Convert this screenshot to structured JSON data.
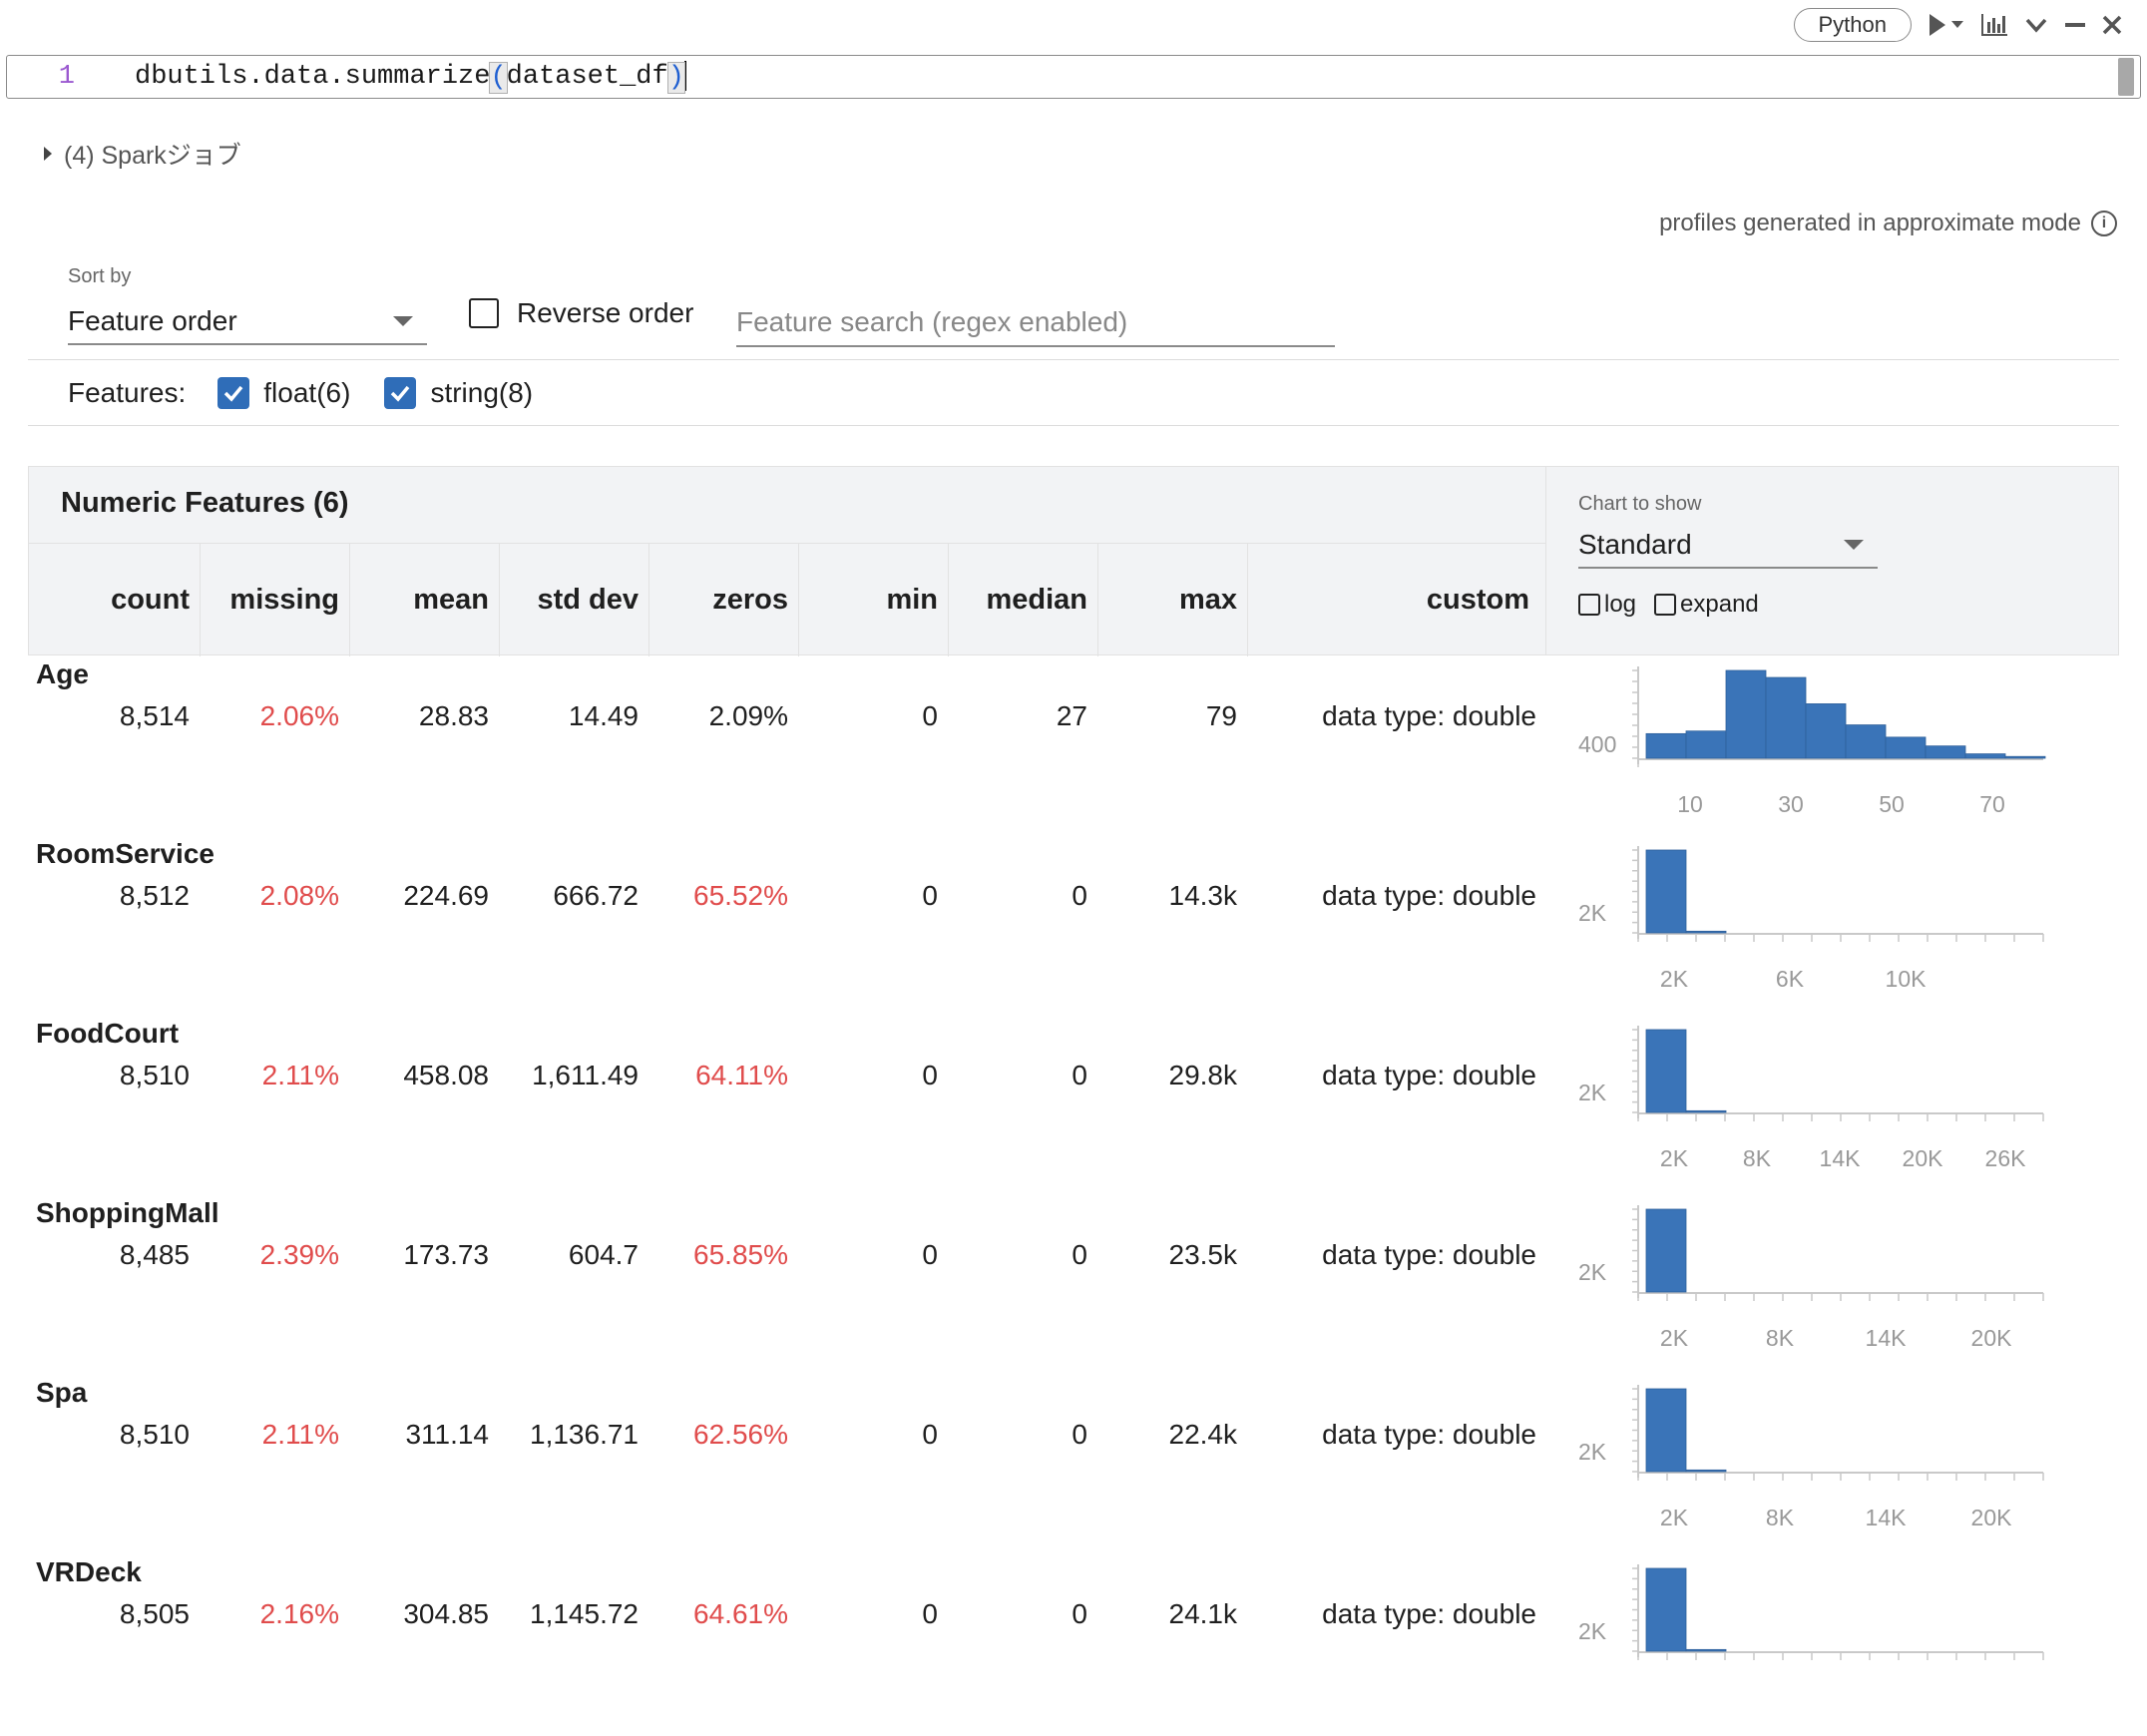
{
  "toolbar": {
    "language": "Python",
    "icons": [
      "run-icon",
      "run-dropdown-icon",
      "chart-icon",
      "collapse-chevron-icon",
      "minimize-icon",
      "close-icon"
    ]
  },
  "editor": {
    "line_number": "1",
    "code_prefix": "dbutils.data.summarize",
    "paren_open": "(",
    "arg": "dataset_df",
    "paren_close": ")"
  },
  "spark_jobs": "(4) Sparkジョブ",
  "approx_mode": "profiles generated in approximate mode",
  "controls": {
    "sort_by_label": "Sort by",
    "sort_value": "Feature order",
    "reverse_label": "Reverse order",
    "search_placeholder": "Feature search (regex enabled)",
    "features_label": "Features:",
    "feature_types": [
      {
        "label": "float(6)",
        "checked": true
      },
      {
        "label": "string(8)",
        "checked": true
      }
    ]
  },
  "table": {
    "title": "Numeric Features (6)",
    "columns": [
      "count",
      "missing",
      "mean",
      "std dev",
      "zeros",
      "min",
      "median",
      "max",
      "custom"
    ],
    "chart_panel": {
      "label": "Chart to show",
      "value": "Standard",
      "log_label": "log",
      "expand_label": "expand"
    },
    "rows": [
      {
        "name": "Age",
        "count": "8,514",
        "missing": "2.06%",
        "mean": "28.83",
        "std_dev": "14.49",
        "zeros": "2.09%",
        "min": "0",
        "median": "27",
        "max": "79",
        "custom": "data type: double",
        "zeros_red": false,
        "chart_data": {
          "type": "bar",
          "y_tick_label": "400",
          "x_tick_labels": [
            "10",
            "30",
            "50",
            "70"
          ],
          "values": [
            0.28,
            0.31,
            1.0,
            0.92,
            0.62,
            0.38,
            0.24,
            0.14,
            0.05,
            0.02
          ]
        }
      },
      {
        "name": "RoomService",
        "count": "8,512",
        "missing": "2.08%",
        "mean": "224.69",
        "std_dev": "666.72",
        "zeros": "65.52%",
        "min": "0",
        "median": "0",
        "max": "14.3k",
        "custom": "data type: double",
        "zeros_red": true,
        "chart_data": {
          "type": "bar",
          "y_tick_label": "2K",
          "x_tick_labels": [
            "2K",
            "6K",
            "10K"
          ],
          "values": [
            1.0,
            0.02,
            0.0
          ]
        }
      },
      {
        "name": "FoodCourt",
        "count": "8,510",
        "missing": "2.11%",
        "mean": "458.08",
        "std_dev": "1,611.49",
        "zeros": "64.11%",
        "min": "0",
        "median": "0",
        "max": "29.8k",
        "custom": "data type: double",
        "zeros_red": true,
        "chart_data": {
          "type": "bar",
          "y_tick_label": "2K",
          "x_tick_labels": [
            "2K",
            "8K",
            "14K",
            "20K",
            "26K"
          ],
          "values": [
            1.0,
            0.02,
            0.0
          ]
        }
      },
      {
        "name": "ShoppingMall",
        "count": "8,485",
        "missing": "2.39%",
        "mean": "173.73",
        "std_dev": "604.7",
        "zeros": "65.85%",
        "min": "0",
        "median": "0",
        "max": "23.5k",
        "custom": "data type: double",
        "zeros_red": true,
        "chart_data": {
          "type": "bar",
          "y_tick_label": "2K",
          "x_tick_labels": [
            "2K",
            "8K",
            "14K",
            "20K"
          ],
          "values": [
            1.0,
            0.0
          ]
        }
      },
      {
        "name": "Spa",
        "count": "8,510",
        "missing": "2.11%",
        "mean": "311.14",
        "std_dev": "1,136.71",
        "zeros": "62.56%",
        "min": "0",
        "median": "0",
        "max": "22.4k",
        "custom": "data type: double",
        "zeros_red": true,
        "chart_data": {
          "type": "bar",
          "y_tick_label": "2K",
          "x_tick_labels": [
            "2K",
            "8K",
            "14K",
            "20K"
          ],
          "values": [
            1.0,
            0.02,
            0.0
          ]
        }
      },
      {
        "name": "VRDeck",
        "count": "8,505",
        "missing": "2.16%",
        "mean": "304.85",
        "std_dev": "1,145.72",
        "zeros": "64.61%",
        "min": "0",
        "median": "0",
        "max": "24.1k",
        "custom": "data type: double",
        "zeros_red": true,
        "chart_data": {
          "type": "bar",
          "y_tick_label": "2K",
          "x_tick_labels": [],
          "values": [
            1.0,
            0.02,
            0.0
          ]
        }
      }
    ]
  },
  "colors": {
    "accent": "#2f6db8",
    "bar": "#3a74b8",
    "red": "#e04c4c"
  }
}
